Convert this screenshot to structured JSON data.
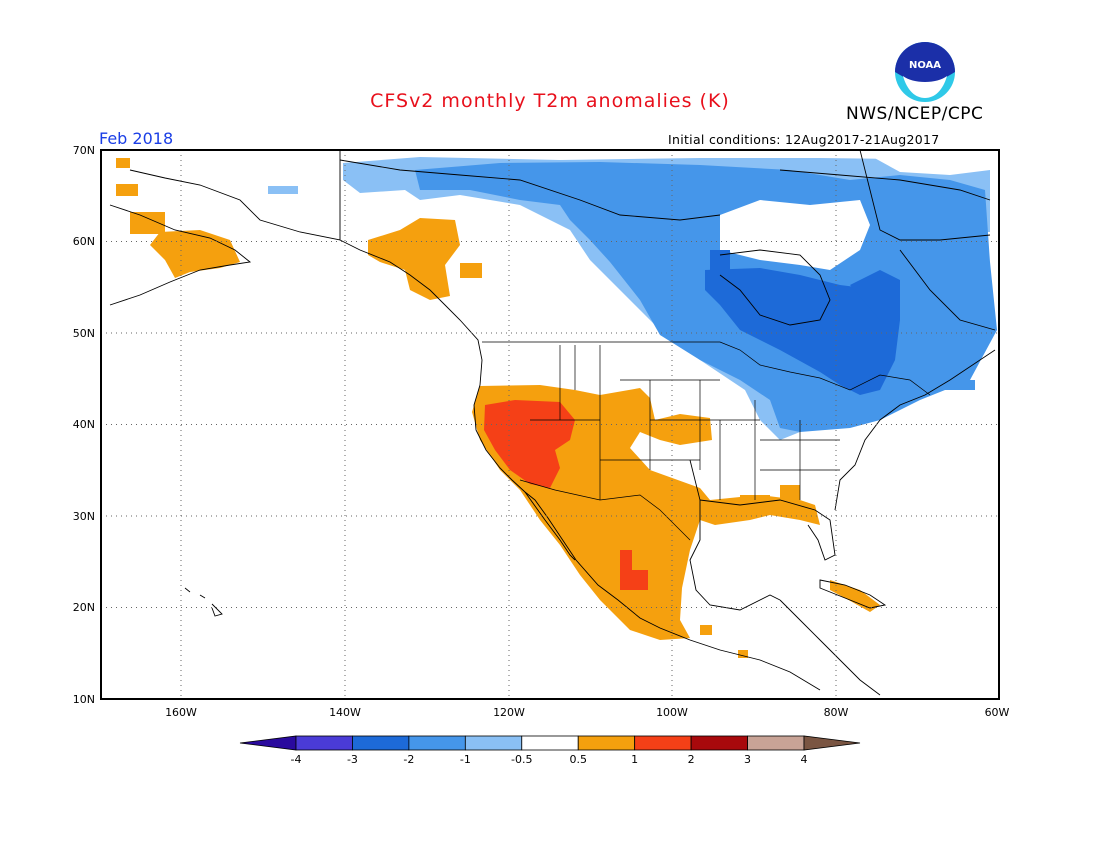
{
  "title": "CFSv2 monthly T2m anomalies (K)",
  "agency": "NWS/NCEP/CPC",
  "logo_text": "NOAA",
  "period": "Feb 2018",
  "initial_conditions": "Initial conditions: 12Aug2017-21Aug2017",
  "map": {
    "projection": "equirectangular",
    "lon_range": [
      -172,
      -60
    ],
    "lat_range": [
      10,
      70
    ],
    "lat_ticks": [
      "70N",
      "60N",
      "50N",
      "40N",
      "30N",
      "20N",
      "10N"
    ],
    "lon_ticks": [
      "160W",
      "140W",
      "120W",
      "100W",
      "80W",
      "60W"
    ],
    "gridlines": "dotted",
    "anomaly_regions": [
      {
        "label": "-2",
        "color": "#1d6ad8",
        "area": "Hudson Bay / Ontario / Quebec"
      },
      {
        "label": "-1",
        "color": "#4596ea",
        "area": "Eastern Canada and Great Lakes"
      },
      {
        "label": "-0.5",
        "color": "#8ac0f5",
        "area": "Northern Canada and Northeast US"
      },
      {
        "label": "0.5",
        "color": "#f5a00e",
        "area": "Southwest US, Mexico, Gulf Coast, Alaska"
      },
      {
        "label": "1",
        "color": "#f54017",
        "area": "Great Basin / California and west Mexico"
      }
    ]
  },
  "colorbar": {
    "labels": [
      "-4",
      "-3",
      "-2",
      "-1",
      "-0.5",
      "0.5",
      "1",
      "2",
      "3",
      "4"
    ],
    "colors": [
      "#2a0a9e",
      "#4a3bd6",
      "#1d6ad8",
      "#4596ea",
      "#8ac0f5",
      "#ffffff",
      "#f5a00e",
      "#f54017",
      "#a8090c",
      "#c8a396",
      "#7a5542"
    ]
  }
}
